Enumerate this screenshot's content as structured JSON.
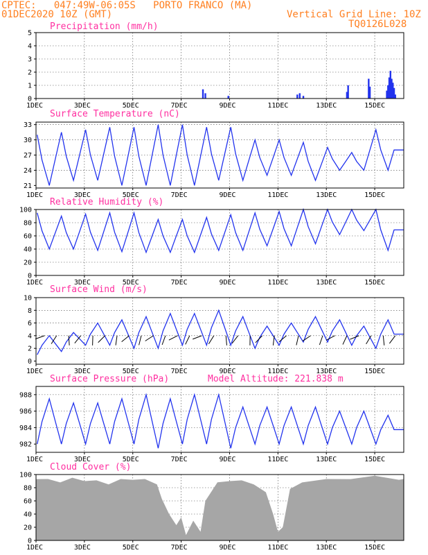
{
  "header": {
    "line1": "CPTEC:   047:49W-06:05S   PORTO FRANCO (MA)",
    "line2_left": "01DEC2020 10Z (GMT)",
    "line2_right": "Vertical Grid Line: 10Z",
    "line3_right": "TQ0126L028"
  },
  "colors": {
    "title": "#ff2fa0",
    "header": "#ff7f1f",
    "series": "#2233ee",
    "bars": "#2233ee",
    "cloud": "#a6a6a6"
  },
  "x_labels": [
    "1DEC",
    "3DEC",
    "5DEC",
    "7DEC",
    "9DEC",
    "11DEC",
    "13DEC",
    "15DEC"
  ],
  "chart_data": [
    {
      "type": "bar",
      "title": "Precipitation (mm/h)",
      "ylim": [
        0,
        5
      ],
      "yticks": [
        0,
        1,
        2,
        3,
        4,
        5
      ],
      "x": [
        "6.9",
        "7.0",
        "7.95",
        "10.8",
        "10.9",
        "11.05",
        "12.85",
        "12.9",
        "13.75",
        "13.8",
        "14.5",
        "14.55",
        "14.6",
        "14.65",
        "14.7",
        "14.75",
        "14.8",
        "14.85"
      ],
      "values": [
        0.7,
        0.4,
        0.2,
        0.3,
        0.4,
        0.2,
        0.5,
        1.0,
        1.5,
        0.9,
        0.6,
        1.0,
        1.6,
        2.1,
        1.5,
        1.2,
        0.8,
        0.3
      ]
    },
    {
      "type": "line",
      "title": "Surface Temperature (nC)",
      "ylim": [
        20.5,
        33.5
      ],
      "yticks": [
        21,
        24,
        27,
        30,
        33
      ],
      "days": 15,
      "series": {
        "tmin": [
          21,
          22,
          22,
          21,
          21,
          21,
          21,
          22,
          22,
          23,
          23,
          22,
          24,
          24,
          24
        ],
        "tmax": [
          31,
          31.5,
          32,
          32.5,
          32.5,
          33,
          33,
          32.5,
          32.5,
          30,
          30,
          29.5,
          28.5,
          27.5,
          32
        ]
      }
    },
    {
      "type": "line",
      "title": "Relative Humidity (%)",
      "ylim": [
        0,
        100
      ],
      "yticks": [
        0,
        20,
        40,
        60,
        80,
        100
      ],
      "days": 15,
      "series": {
        "rhmin": [
          40,
          40,
          38,
          36,
          35,
          35,
          35,
          38,
          38,
          45,
          45,
          48,
          62,
          68,
          38
        ],
        "rhmax": [
          95,
          90,
          93,
          95,
          95,
          85,
          85,
          88,
          92,
          95,
          97,
          100,
          100,
          100,
          100
        ]
      }
    },
    {
      "type": "line",
      "title": "Surface Wind (m/s)",
      "ylim": [
        -0.5,
        10
      ],
      "yticks": [
        0,
        2,
        4,
        6,
        8,
        10
      ],
      "days": 15,
      "series": {
        "wspeed_peak": [
          4,
          4.5,
          6,
          6.5,
          7,
          7.5,
          7.5,
          8,
          7,
          5.5,
          6,
          7,
          6.5,
          5.5,
          6.5
        ],
        "wspeed_low": [
          1,
          1.5,
          2.5,
          2.5,
          2,
          2,
          2.5,
          2.5,
          2.5,
          2,
          2.5,
          3,
          3,
          2.5,
          2
        ]
      }
    },
    {
      "type": "line",
      "title": "Surface Pressure (hPa)",
      "subtitle": "Model Altitude: 221.838  m",
      "ylim": [
        981,
        989
      ],
      "yticks": [
        982,
        984,
        986,
        988
      ],
      "days": 15,
      "series": {
        "pmax": [
          987.5,
          987,
          987,
          987.5,
          988,
          987.5,
          988,
          988,
          986.5,
          986.5,
          986.5,
          986.5,
          986,
          986,
          985.5
        ],
        "pmin": [
          982,
          982,
          982,
          982,
          982,
          981.5,
          982,
          982,
          981.5,
          982,
          982,
          982,
          982,
          982,
          982
        ]
      }
    },
    {
      "type": "area",
      "title": "Cloud Cover (%)",
      "ylim": [
        0,
        100
      ],
      "yticks": [
        0,
        20,
        40,
        60,
        80,
        100
      ],
      "x": [
        0,
        0.5,
        1,
        1.5,
        2,
        2.5,
        3,
        3.5,
        4,
        4.5,
        5,
        5.2,
        5.5,
        5.8,
        6,
        6.2,
        6.5,
        6.8,
        7,
        7.5,
        8,
        8.5,
        9,
        9.5,
        9.8,
        10,
        10.2,
        10.5,
        11,
        12,
        13,
        14,
        15,
        15.2
      ],
      "values": [
        93,
        90,
        88,
        92,
        90,
        88,
        85,
        90,
        92,
        90,
        85,
        60,
        40,
        20,
        35,
        5,
        30,
        10,
        60,
        85,
        90,
        88,
        85,
        70,
        40,
        10,
        20,
        75,
        88,
        90,
        93,
        95,
        92,
        90
      ]
    }
  ]
}
